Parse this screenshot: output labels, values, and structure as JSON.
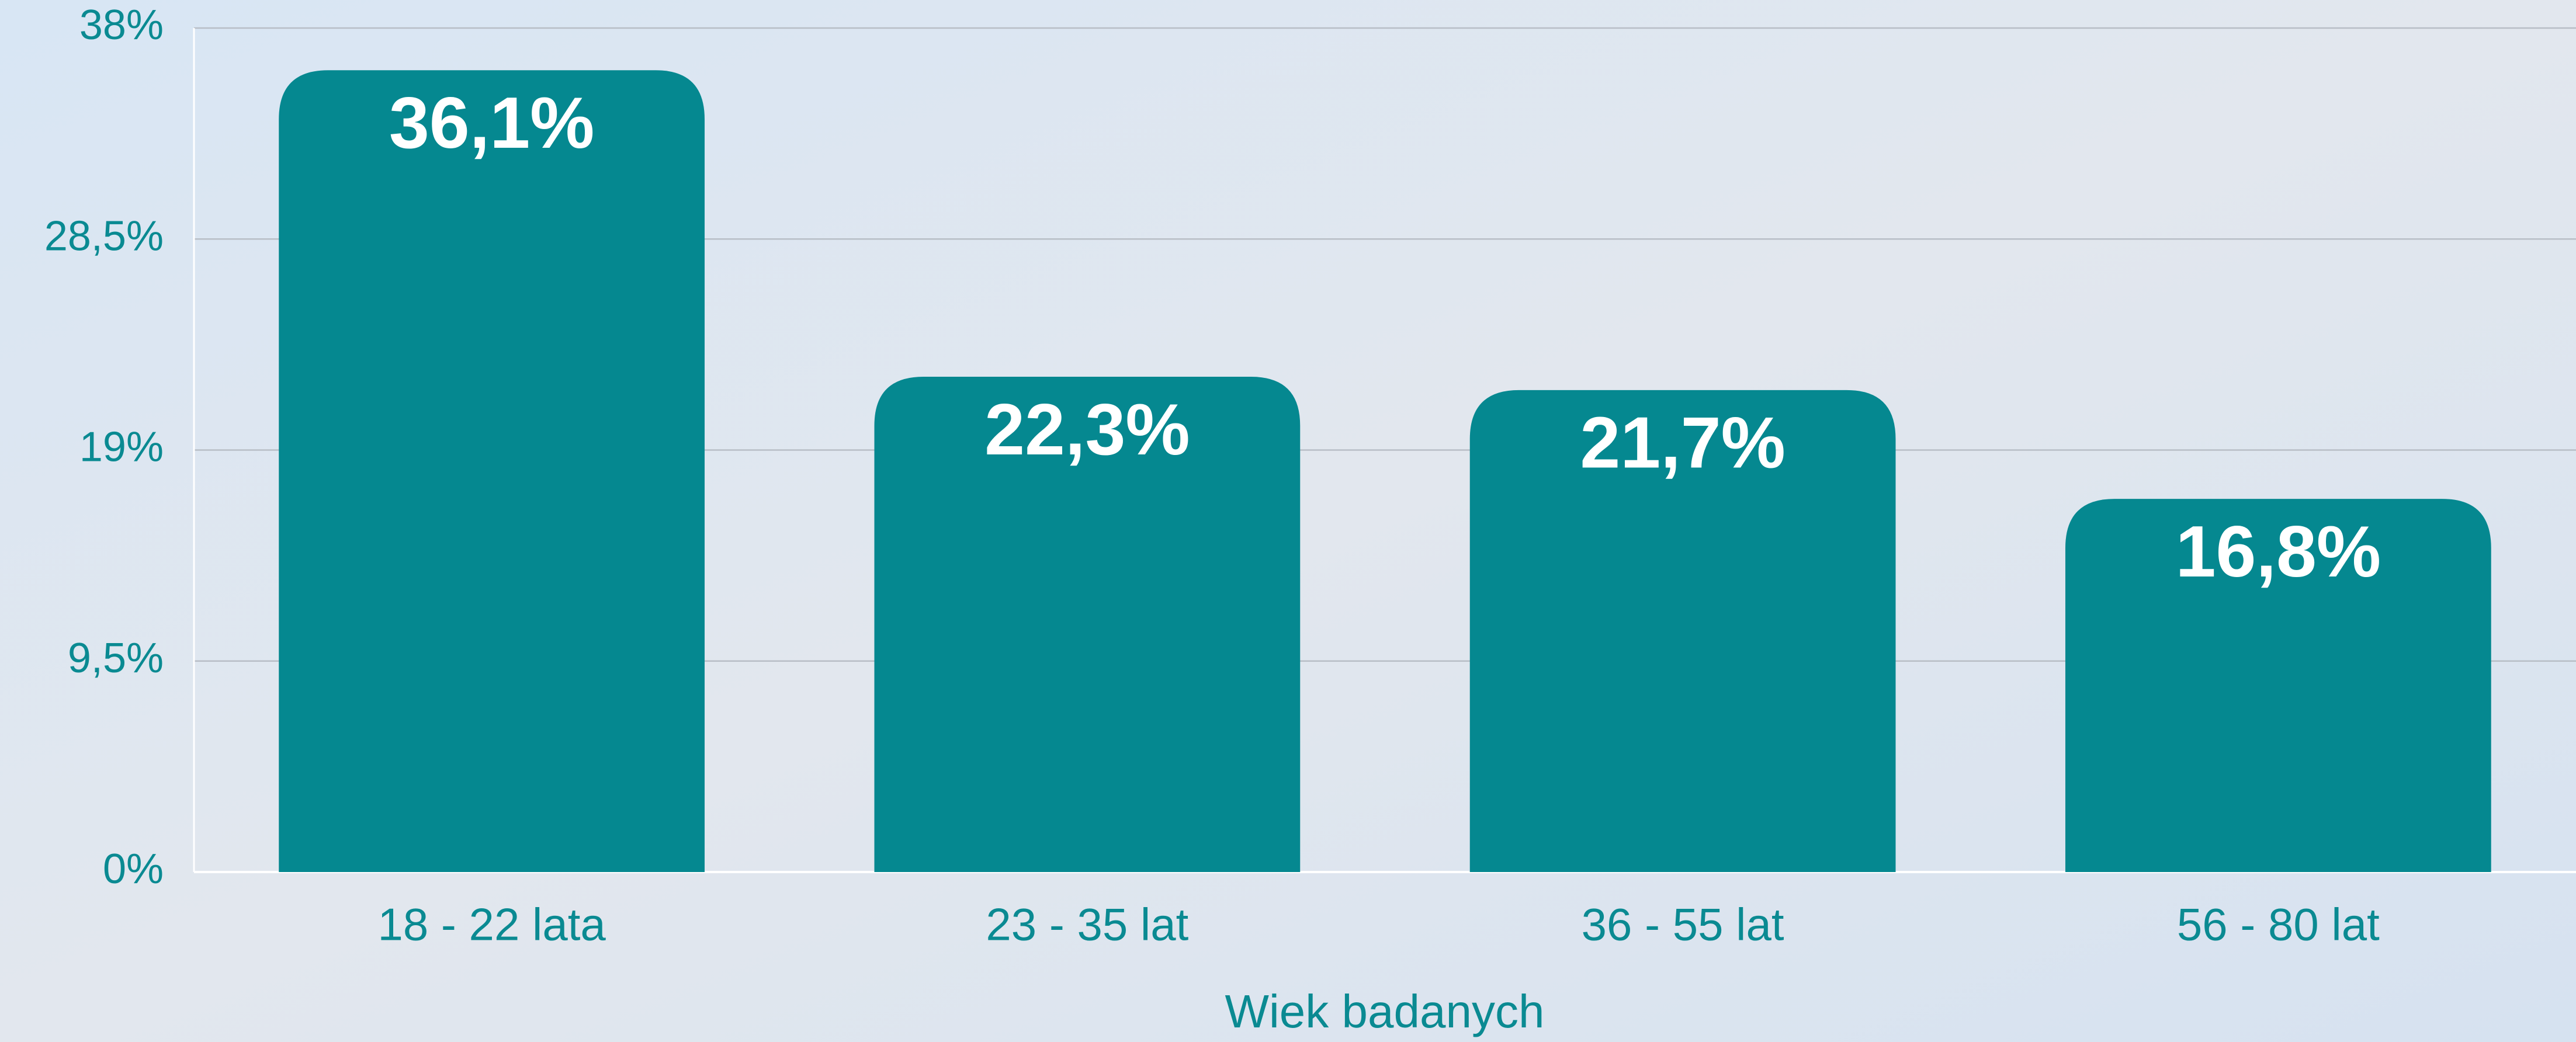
{
  "chart_data": {
    "type": "bar",
    "x_label": "Wiek badanych",
    "categories": [
      "18 - 22 lata",
      "23 - 35 lat",
      "36 - 55 lat",
      "56 - 80 lat"
    ],
    "values": [
      36.1,
      22.3,
      21.7,
      16.8
    ],
    "value_labels": [
      "36,1%",
      "22,3%",
      "21,7%",
      "16,8%"
    ],
    "color": "#058890",
    "ylim": [
      0,
      38
    ],
    "yticks": [
      {
        "value": 0,
        "label": "0%"
      },
      {
        "value": 9.5,
        "label": "9,5%"
      },
      {
        "value": 19,
        "label": "19%"
      },
      {
        "value": 28.5,
        "label": "28,5%"
      },
      {
        "value": 38,
        "label": "38%"
      }
    ],
    "grid": true
  }
}
